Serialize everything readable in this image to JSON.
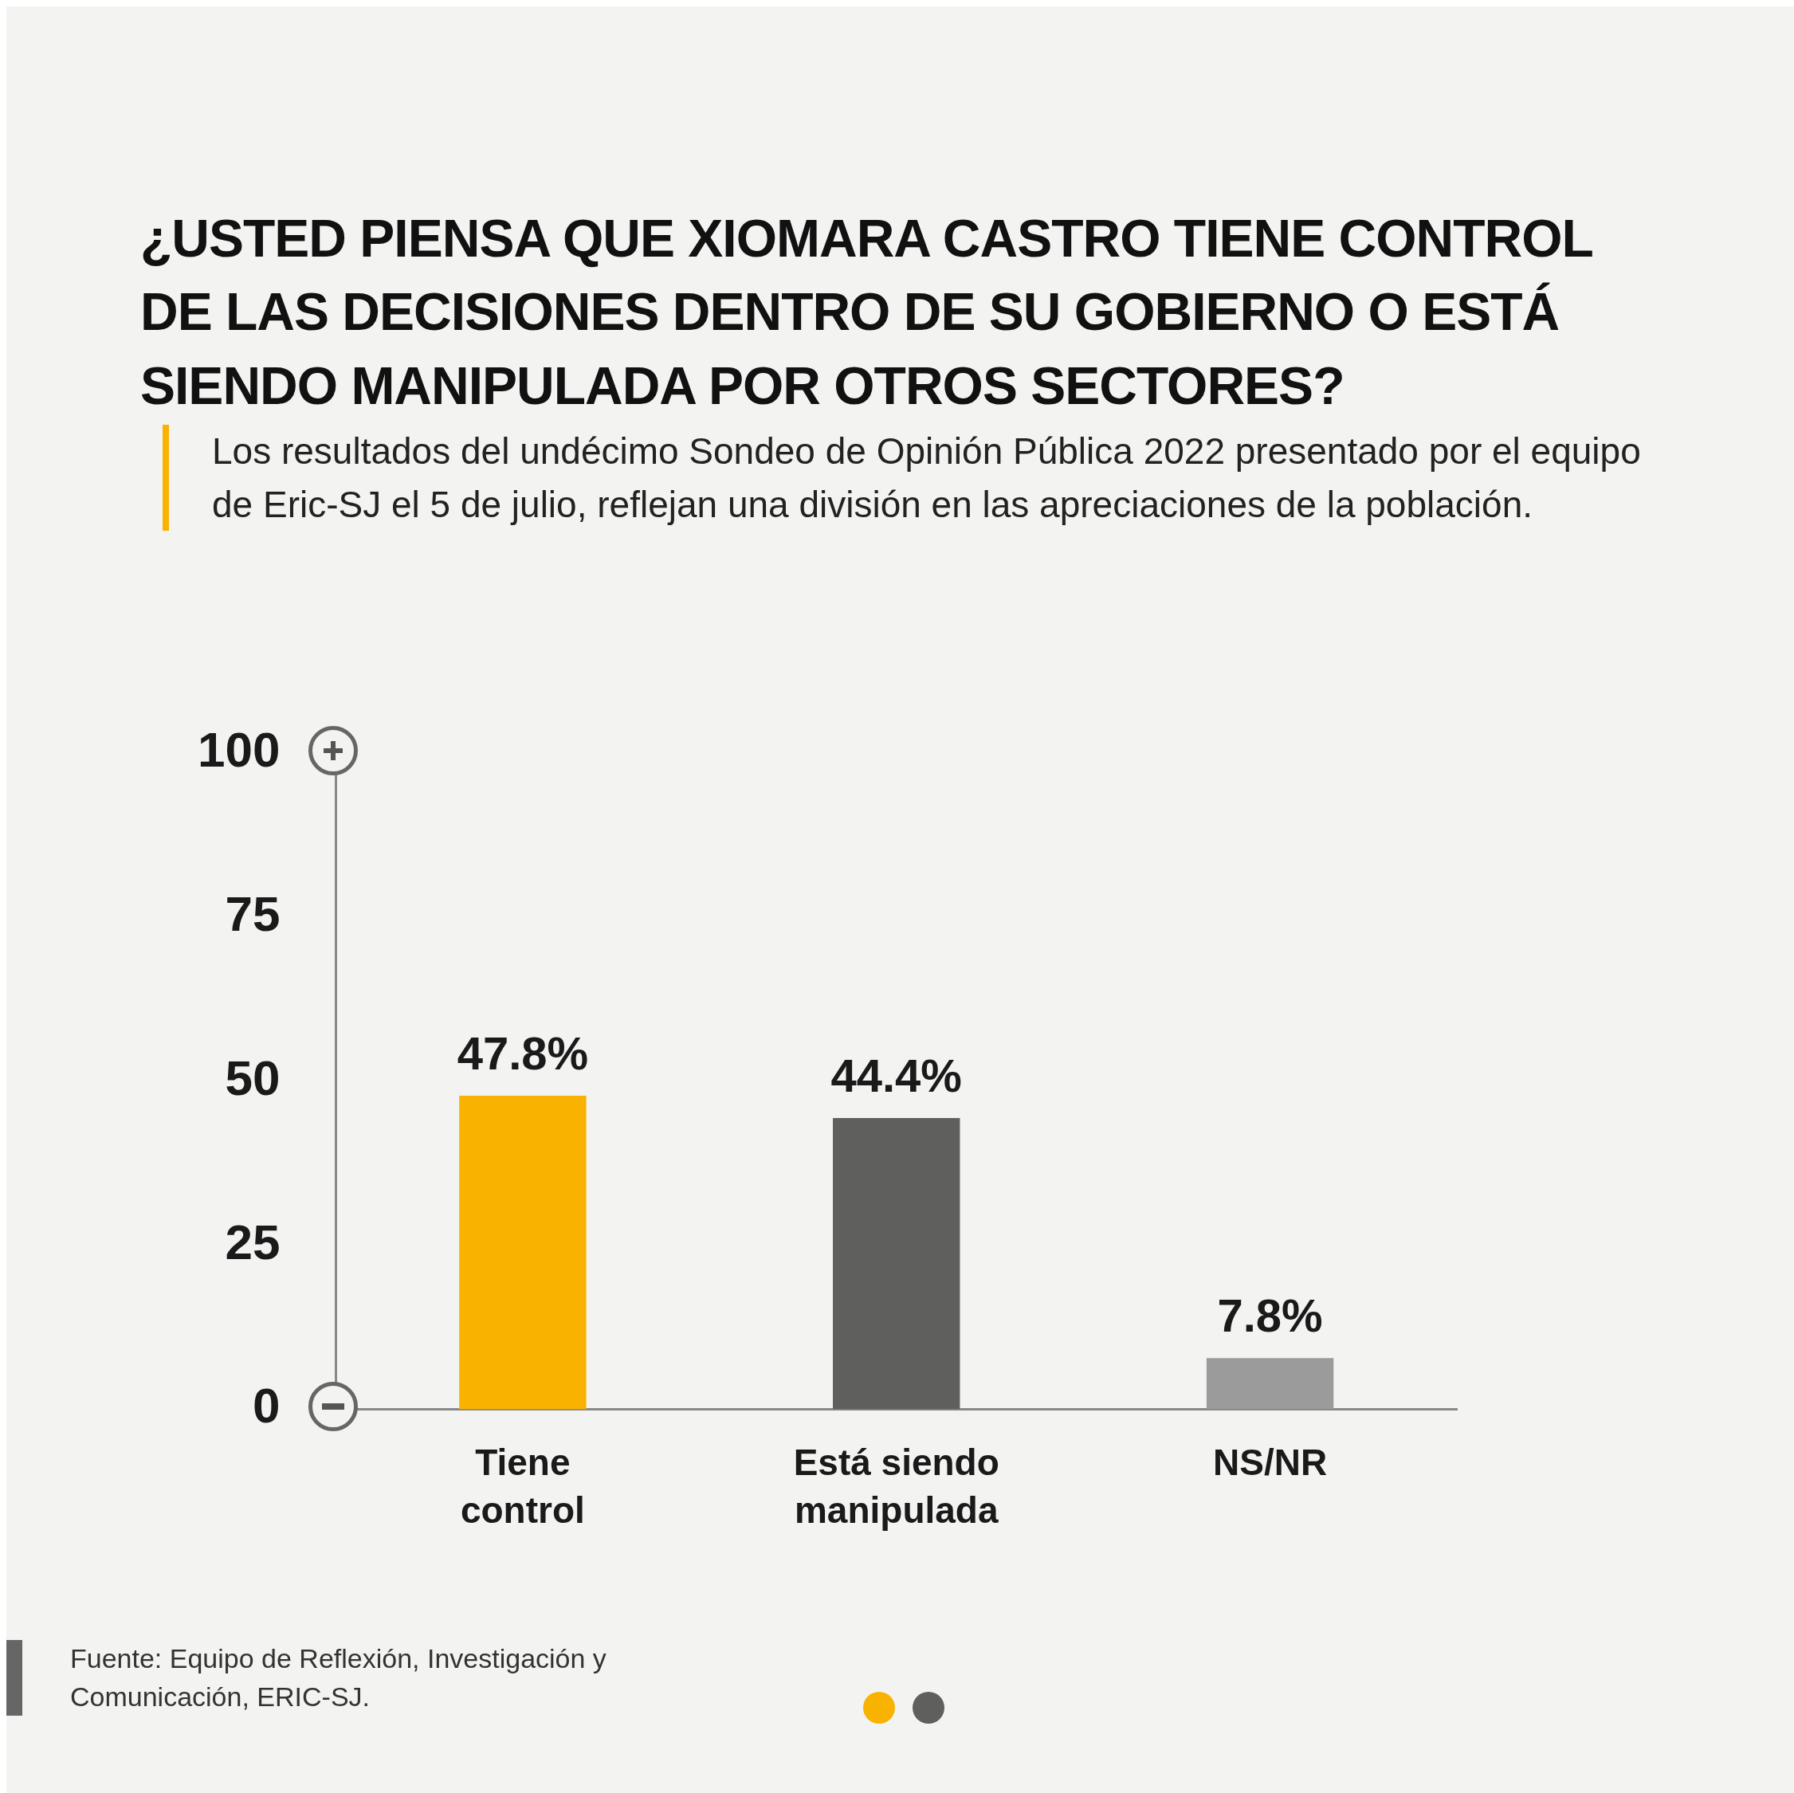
{
  "chart_data": {
    "type": "bar",
    "title": "¿USTED PIENSA QUE XIOMARA CASTRO TIENE CONTROL DE LAS DECISIONES DENTRO DE SU GOBIERNO O ESTÁ SIENDO MANIPULADA POR OTROS SECTORES?",
    "subtitle": "Los resultados del undécimo Sondeo de Opinión Pública 2022 presentado por el equipo de Eric-SJ el 5 de julio, reflejan una división en las apreciaciones de la población.",
    "categories": [
      "Tiene control",
      "Está siendo manipulada",
      "NS/NR"
    ],
    "values": [
      47.8,
      44.4,
      7.8
    ],
    "colors": [
      "#f9b200",
      "#5f605e",
      "#9b9b9b"
    ],
    "value_labels": [
      "47.8%",
      "44.4%",
      "7.8%"
    ],
    "ylim": [
      0,
      100
    ],
    "yticks": [
      0,
      25,
      50,
      75,
      100
    ],
    "grid": false,
    "legend": false,
    "annotations": [
      "Fuente: Equipo de Reflexión, Investigación y Comunicación, ERIC-SJ."
    ]
  }
}
